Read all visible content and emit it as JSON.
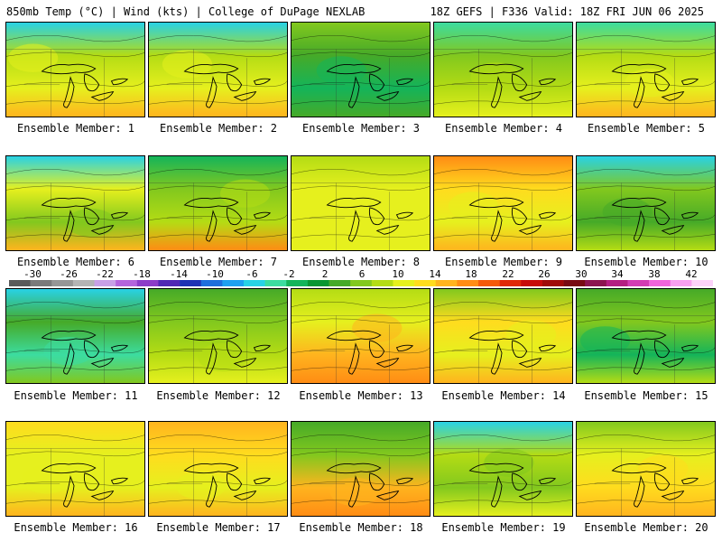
{
  "header": {
    "title_left": "850mb Temp (°C) | Wind (kts) | College of DuPage NEXLAB",
    "title_right": "18Z GEFS | F336 Valid: 18Z FRI JUN 06 2025"
  },
  "colorbar": {
    "labels": [
      "-30",
      "-26",
      "-22",
      "-18",
      "-14",
      "-10",
      "-6",
      "-2",
      "2",
      "6",
      "10",
      "14",
      "18",
      "22",
      "26",
      "30",
      "34",
      "38",
      "42"
    ],
    "colors": [
      "#5a5a5a",
      "#7a7a7a",
      "#969696",
      "#b4b4b4",
      "#c8a0e6",
      "#b464dc",
      "#8c3cc8",
      "#5028b4",
      "#1e32b4",
      "#1e6edc",
      "#1ea0f0",
      "#28d2e6",
      "#3cdca0",
      "#14b45a",
      "#0a9632",
      "#46aa28",
      "#82c81e",
      "#b4dc14",
      "#e6f01e",
      "#ffdc1e",
      "#ffb41e",
      "#ff8c14",
      "#f55a0a",
      "#e12808",
      "#c80a0a",
      "#a00a0a",
      "#780a14",
      "#8c1450",
      "#b41e82",
      "#d23cb4",
      "#f064dc",
      "#f8a0f0",
      "#fcd2fa"
    ]
  },
  "panels": [
    {
      "label": "Ensemble Member: 1",
      "base": "#b4dc14",
      "top": "#28d2e6",
      "mid": "#e6f01e",
      "low": "#ffb41e"
    },
    {
      "label": "Ensemble Member: 2",
      "base": "#b4dc14",
      "top": "#28d2e6",
      "mid": "#e6f01e",
      "low": "#ffb41e"
    },
    {
      "label": "Ensemble Member: 3",
      "base": "#46aa28",
      "top": "#82c81e",
      "mid": "#14b45a",
      "low": "#46aa28"
    },
    {
      "label": "Ensemble Member: 4",
      "base": "#82c81e",
      "top": "#3cdca0",
      "mid": "#b4dc14",
      "low": "#e6f01e"
    },
    {
      "label": "Ensemble Member: 5",
      "base": "#b4dc14",
      "top": "#3cdca0",
      "mid": "#e6f01e",
      "low": "#ffb41e"
    },
    {
      "label": "Ensemble Member: 6",
      "base": "#e6f01e",
      "top": "#28d2e6",
      "mid": "#82c81e",
      "low": "#ffb41e"
    },
    {
      "label": "Ensemble Member: 7",
      "base": "#82c81e",
      "top": "#14b45a",
      "mid": "#b4dc14",
      "low": "#ff8c14"
    },
    {
      "label": "Ensemble Member: 8",
      "base": "#e6f01e",
      "top": "#b4dc14",
      "mid": "#e6f01e",
      "low": "#e6f01e"
    },
    {
      "label": "Ensemble Member: 9",
      "base": "#ffdc1e",
      "top": "#ff8c14",
      "mid": "#e6f01e",
      "low": "#ffb41e"
    },
    {
      "label": "Ensemble Member: 10",
      "base": "#82c81e",
      "top": "#28d2e6",
      "mid": "#46aa28",
      "low": "#b4dc14"
    },
    {
      "label": "Ensemble Member: 11",
      "base": "#46aa28",
      "top": "#28d2e6",
      "mid": "#3cdca0",
      "low": "#82c81e"
    },
    {
      "label": "Ensemble Member: 12",
      "base": "#82c81e",
      "top": "#46aa28",
      "mid": "#b4dc14",
      "low": "#e6f01e"
    },
    {
      "label": "Ensemble Member: 13",
      "base": "#e6f01e",
      "top": "#b4dc14",
      "mid": "#ffb41e",
      "low": "#ff8c14"
    },
    {
      "label": "Ensemble Member: 14",
      "base": "#ffdc1e",
      "top": "#82c81e",
      "mid": "#e6f01e",
      "low": "#ffb41e"
    },
    {
      "label": "Ensemble Member: 15",
      "base": "#82c81e",
      "top": "#46aa28",
      "mid": "#14b45a",
      "low": "#b4dc14"
    },
    {
      "label": "Ensemble Member: 16",
      "base": "#e6f01e",
      "top": "#ffdc1e",
      "mid": "#e6f01e",
      "low": "#ffb41e"
    },
    {
      "label": "Ensemble Member: 17",
      "base": "#ffdc1e",
      "top": "#ffb41e",
      "mid": "#e6f01e",
      "low": "#ffb41e"
    },
    {
      "label": "Ensemble Member: 18",
      "base": "#82c81e",
      "top": "#46aa28",
      "mid": "#ffb41e",
      "low": "#ff8c14"
    },
    {
      "label": "Ensemble Member: 19",
      "base": "#b4dc14",
      "top": "#28d2e6",
      "mid": "#82c81e",
      "low": "#e6f01e"
    },
    {
      "label": "Ensemble Member: 20",
      "base": "#e6f01e",
      "top": "#82c81e",
      "mid": "#ffdc1e",
      "low": "#ffb41e"
    }
  ]
}
